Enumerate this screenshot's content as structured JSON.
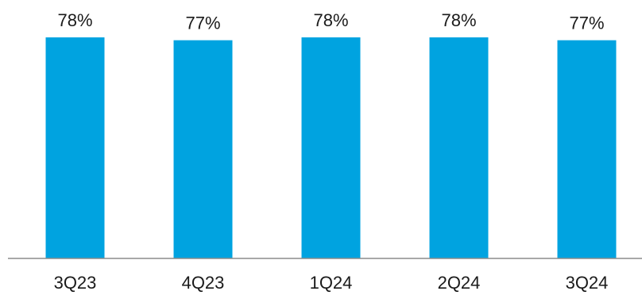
{
  "chart_data": {
    "type": "bar",
    "title": "",
    "xlabel": "",
    "ylabel": "",
    "categories": [
      "3Q23",
      "4Q23",
      "1Q24",
      "2Q24",
      "3Q24"
    ],
    "values": [
      78,
      77,
      78,
      78,
      77
    ],
    "value_labels": [
      "78%",
      "77%",
      "78%",
      "78%",
      "77%"
    ],
    "ylim": [
      0,
      78
    ],
    "grid": false,
    "legend": "none",
    "colors": {
      "bar": "#00A3E0",
      "axis": "#8c8c8c",
      "text": "#1a1a1a"
    }
  }
}
